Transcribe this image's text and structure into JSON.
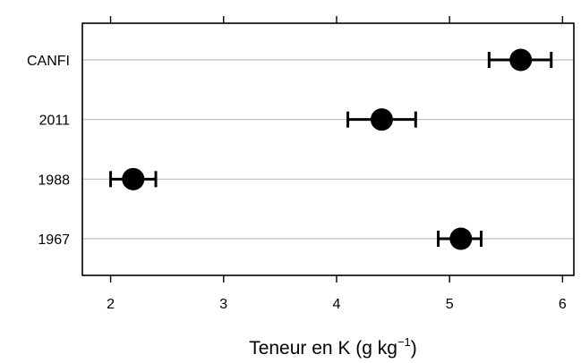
{
  "chart_data": {
    "type": "dotplot-errorbar",
    "categories": [
      "1967",
      "1988",
      "2011",
      "CANFI"
    ],
    "series": [
      {
        "values": [
          5.1,
          2.2,
          4.4,
          5.63
        ],
        "err_low": [
          4.9,
          2.0,
          4.1,
          5.35
        ],
        "err_high": [
          5.28,
          2.4,
          4.7,
          5.9
        ]
      }
    ],
    "xlabel": {
      "text": "Teneur en K (g kg",
      "superscript": "−1",
      "suffix": ")"
    },
    "ylabel": "",
    "xlim": [
      1.75,
      6.1
    ],
    "xticks": [
      2,
      3,
      4,
      5,
      6
    ],
    "xtick_labels": [
      "2",
      "3",
      "4",
      "5",
      "6"
    ],
    "grid": "horizontal",
    "colors": {
      "point": "#000000",
      "grid": "#bdbdbd",
      "frame": "#000000"
    }
  }
}
